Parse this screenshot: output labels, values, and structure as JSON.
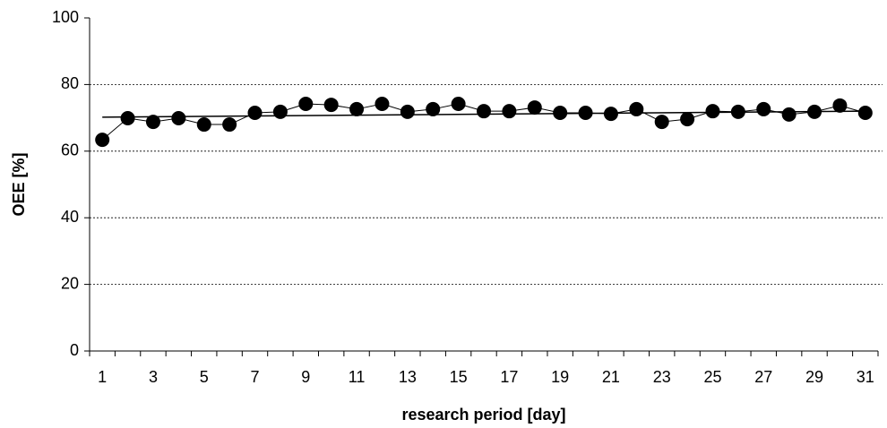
{
  "chart_data": {
    "type": "line",
    "x_label": "research period [day]",
    "y_label": "OEE [%]",
    "categories": [
      "1",
      null,
      "3",
      null,
      "5",
      null,
      "7",
      null,
      "9",
      null,
      "11",
      null,
      "13",
      null,
      "15",
      null,
      "17",
      null,
      "19",
      null,
      "21",
      null,
      "23",
      null,
      "25",
      null,
      "27",
      null,
      "29",
      null,
      "31"
    ],
    "series": [
      {
        "color": "#000000",
        "marker": "circle",
        "values": [
          63.4,
          69.9,
          68.8,
          69.9,
          68.0,
          68.0,
          71.5,
          71.8,
          74.2,
          73.9,
          72.6,
          74.2,
          71.8,
          72.6,
          74.2,
          72.0,
          72.0,
          73.1,
          71.5,
          71.5,
          71.2,
          72.6,
          68.8,
          69.6,
          72.0,
          71.8,
          72.6,
          71.0,
          71.8,
          73.7,
          71.5
        ]
      }
    ],
    "trendline": {
      "type": "linear",
      "color": "#000000",
      "values": [
        70.2,
        72.0
      ]
    },
    "ylim": [
      0,
      100
    ],
    "yticks": [
      0,
      20,
      40,
      60,
      80,
      100
    ],
    "grid": true
  }
}
